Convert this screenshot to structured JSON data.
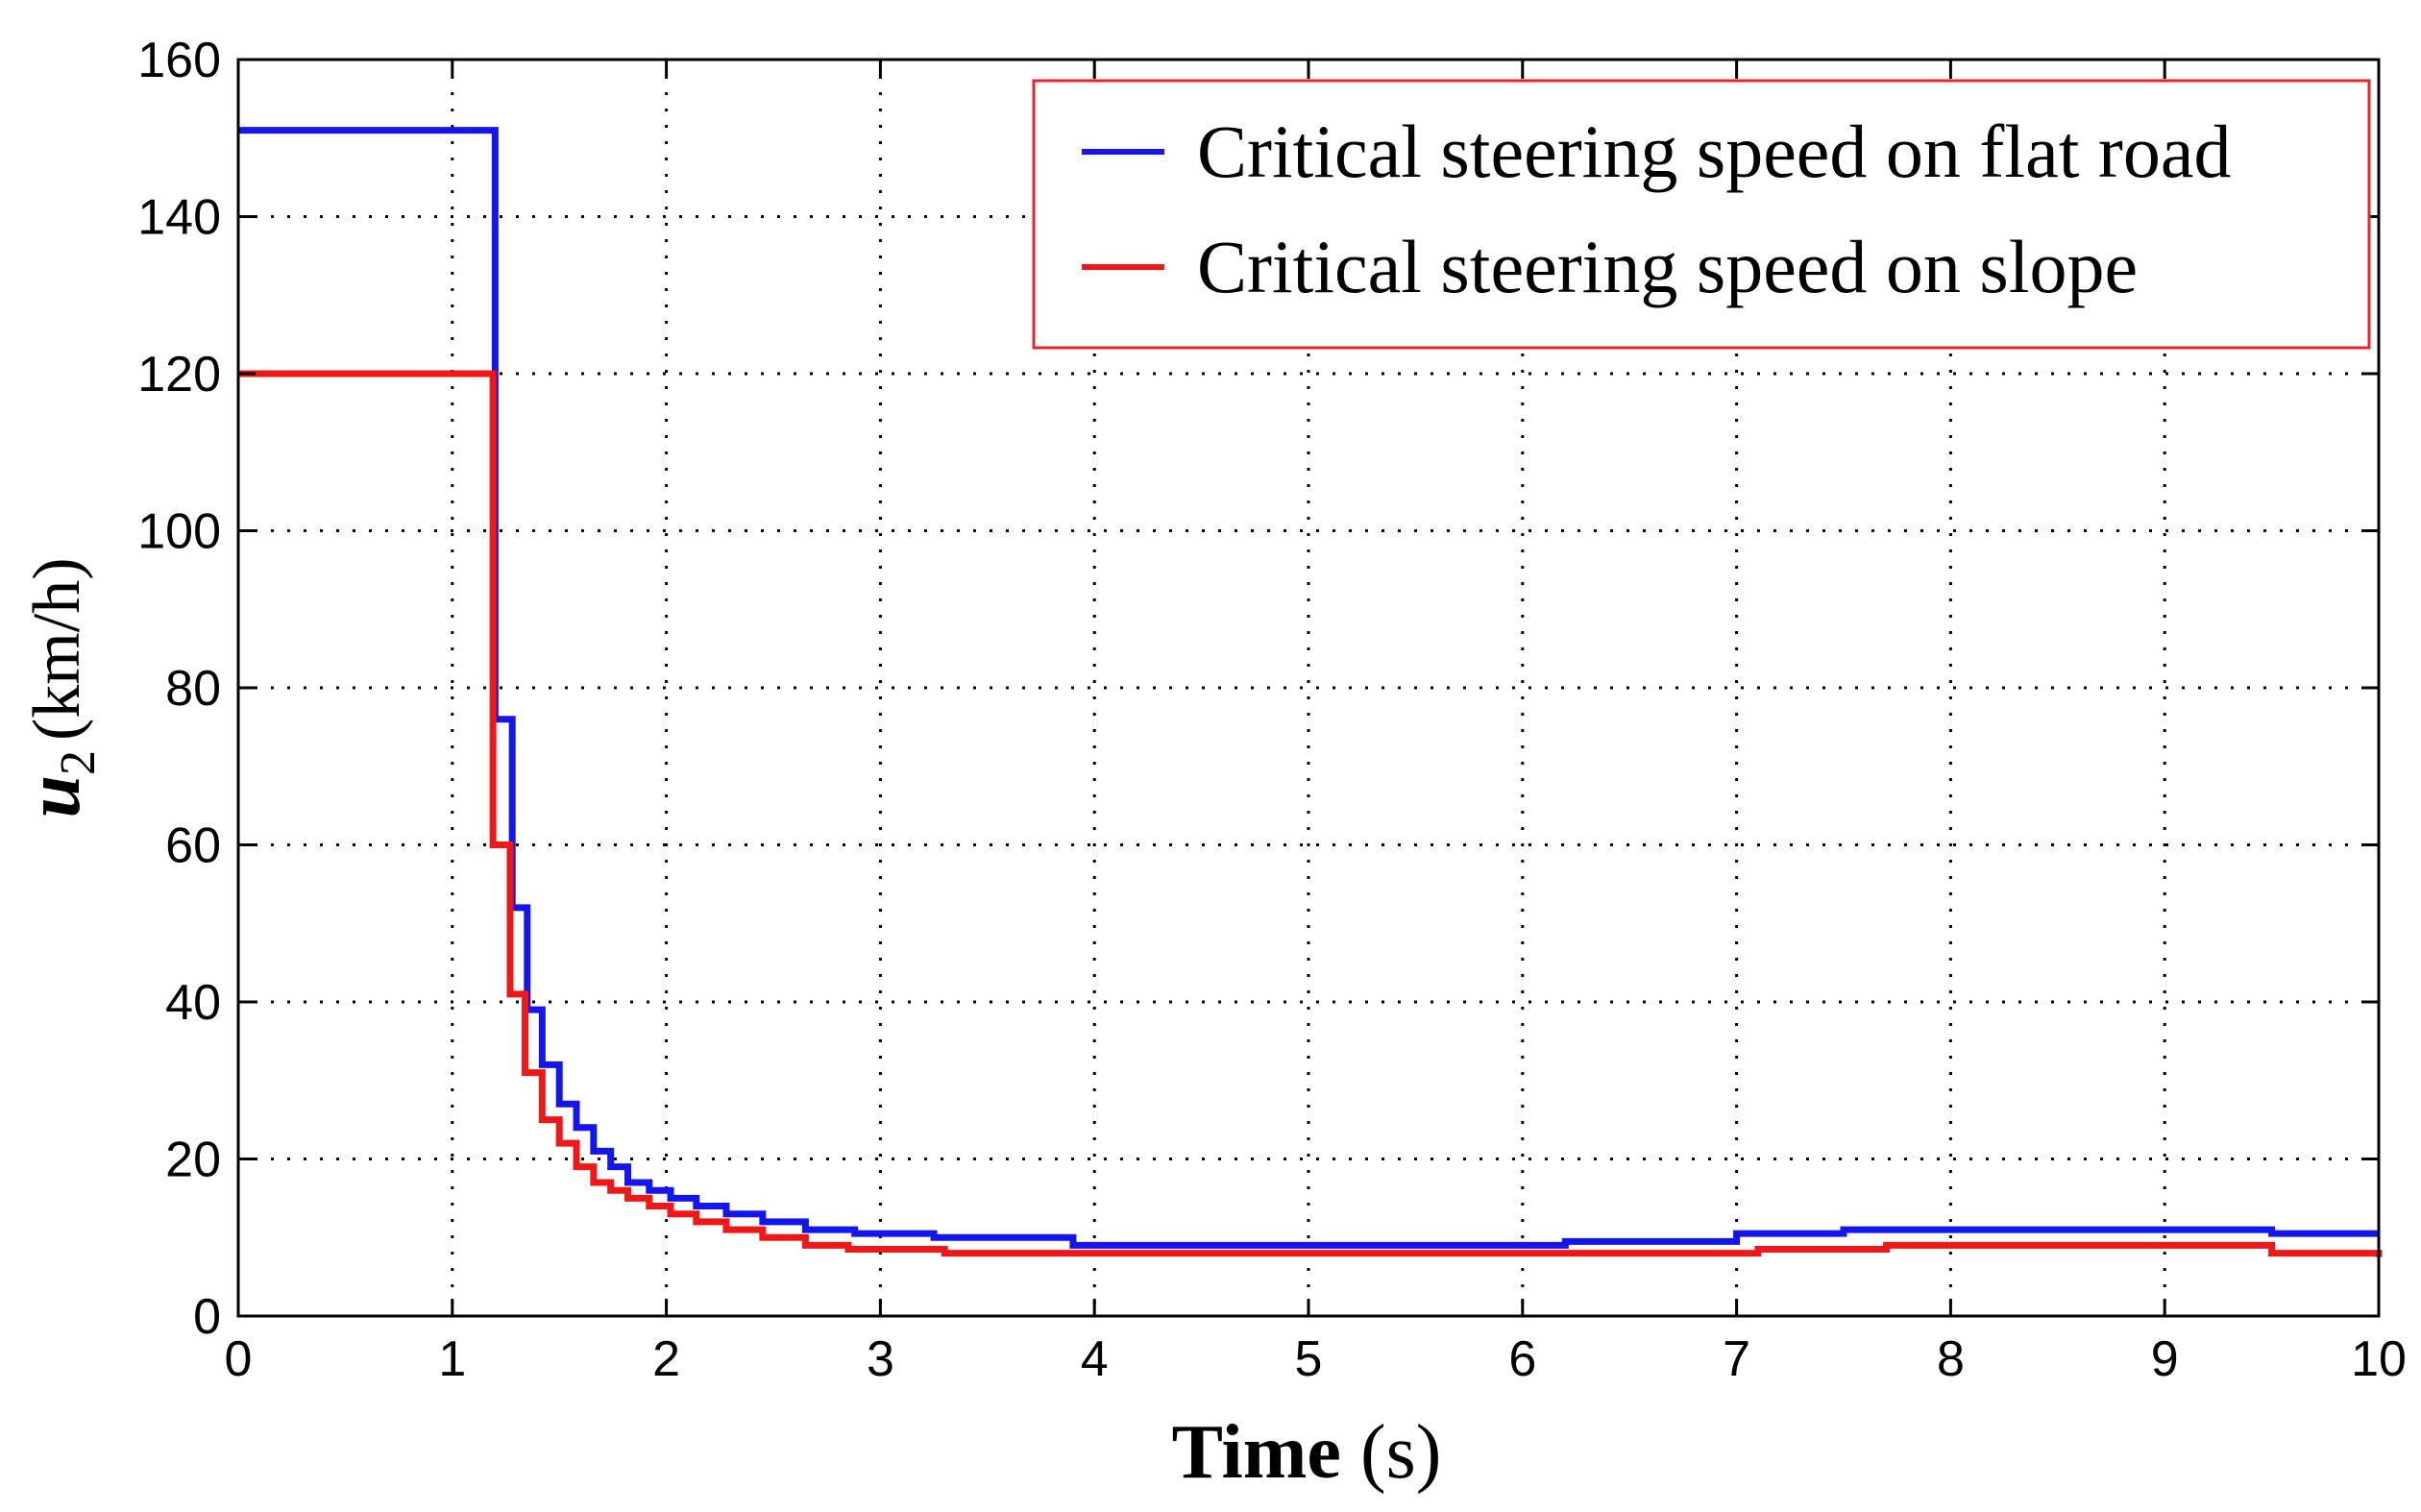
{
  "chart_data": {
    "type": "line",
    "title": "",
    "xlabel_bold": "Time",
    "xlabel_unit": " (s)",
    "ylabel_symbol": "u",
    "ylabel_subscript": "2",
    "ylabel_unit": "(km/h)",
    "xlim": [
      0,
      10
    ],
    "ylim": [
      0,
      160
    ],
    "xticks": [
      "0",
      "1",
      "2",
      "3",
      "4",
      "5",
      "6",
      "7",
      "8",
      "9",
      "10"
    ],
    "yticks": [
      "0",
      "20",
      "40",
      "60",
      "80",
      "100",
      "120",
      "140",
      "160"
    ],
    "grid": true,
    "legend_position": "top-right",
    "series": [
      {
        "name": "Critical steering speed on flat road",
        "color": "#1515ef",
        "x": [
          0,
          1.18,
          1.2,
          1.28,
          1.35,
          1.42,
          1.5,
          1.58,
          1.66,
          1.74,
          1.82,
          1.92,
          2.02,
          2.14,
          2.28,
          2.45,
          2.65,
          2.88,
          3.25,
          3.9,
          6.2,
          7.0,
          7.5,
          9.5,
          10
        ],
        "y": [
          151,
          151,
          76,
          52,
          39,
          32,
          27,
          24,
          21,
          19,
          17,
          16,
          15,
          14,
          13,
          12,
          11,
          10.5,
          10,
          9,
          9.5,
          10.5,
          11,
          10.5,
          10.5
        ]
      },
      {
        "name": "Critical steering speed on slope",
        "color": "#f01717",
        "x": [
          0,
          1.17,
          1.19,
          1.27,
          1.34,
          1.42,
          1.5,
          1.58,
          1.66,
          1.74,
          1.82,
          1.92,
          2.02,
          2.14,
          2.28,
          2.45,
          2.65,
          2.85,
          3.3,
          7.1,
          7.7,
          9.5,
          10
        ],
        "y": [
          120,
          120,
          60,
          41,
          31,
          25,
          22,
          19,
          17,
          16,
          15,
          14,
          13,
          12,
          11,
          10,
          9,
          8.5,
          8,
          8.5,
          9,
          8,
          7.5
        ]
      }
    ]
  }
}
